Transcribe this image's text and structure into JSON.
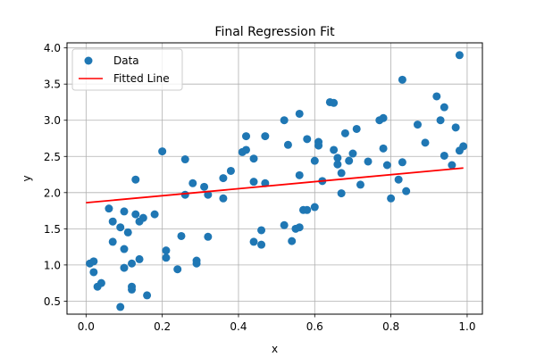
{
  "chart_data": {
    "type": "scatter",
    "title": "Final Regression Fit",
    "xlabel": "x",
    "ylabel": "y",
    "xlim": [
      -0.05,
      1.04
    ],
    "ylim": [
      0.32,
      4.07
    ],
    "grid": true,
    "legend_position": "top-left",
    "x_ticks": [
      "0.0",
      "0.2",
      "0.4",
      "0.6",
      "0.8",
      "1.0"
    ],
    "x_tick_values": [
      0.0,
      0.2,
      0.4,
      0.6,
      0.8,
      1.0
    ],
    "y_ticks": [
      "0.5",
      "1.0",
      "1.5",
      "2.0",
      "2.5",
      "3.0",
      "3.5",
      "4.0"
    ],
    "y_tick_values": [
      0.5,
      1.0,
      1.5,
      2.0,
      2.5,
      3.0,
      3.5,
      4.0
    ],
    "series": [
      {
        "name": "Data",
        "kind": "scatter",
        "color": "#1f77b4",
        "points": [
          [
            0.01,
            1.02
          ],
          [
            0.02,
            0.9
          ],
          [
            0.02,
            1.05
          ],
          [
            0.03,
            0.7
          ],
          [
            0.04,
            0.75
          ],
          [
            0.06,
            1.78
          ],
          [
            0.07,
            1.6
          ],
          [
            0.07,
            1.32
          ],
          [
            0.09,
            1.52
          ],
          [
            0.09,
            0.42
          ],
          [
            0.1,
            0.96
          ],
          [
            0.1,
            1.74
          ],
          [
            0.1,
            1.22
          ],
          [
            0.11,
            1.45
          ],
          [
            0.12,
            1.02
          ],
          [
            0.12,
            0.66
          ],
          [
            0.12,
            0.7
          ],
          [
            0.13,
            2.18
          ],
          [
            0.13,
            1.7
          ],
          [
            0.14,
            1.6
          ],
          [
            0.14,
            1.08
          ],
          [
            0.15,
            1.65
          ],
          [
            0.16,
            0.58
          ],
          [
            0.18,
            1.7
          ],
          [
            0.2,
            2.57
          ],
          [
            0.21,
            1.1
          ],
          [
            0.21,
            1.2
          ],
          [
            0.24,
            0.94
          ],
          [
            0.25,
            1.4
          ],
          [
            0.26,
            2.46
          ],
          [
            0.26,
            1.97
          ],
          [
            0.28,
            2.13
          ],
          [
            0.29,
            1.06
          ],
          [
            0.29,
            1.02
          ],
          [
            0.31,
            2.08
          ],
          [
            0.32,
            1.97
          ],
          [
            0.32,
            1.39
          ],
          [
            0.36,
            1.92
          ],
          [
            0.36,
            2.2
          ],
          [
            0.38,
            2.3
          ],
          [
            0.41,
            2.56
          ],
          [
            0.42,
            2.78
          ],
          [
            0.42,
            2.59
          ],
          [
            0.44,
            2.47
          ],
          [
            0.44,
            2.15
          ],
          [
            0.44,
            1.32
          ],
          [
            0.46,
            1.48
          ],
          [
            0.46,
            1.28
          ],
          [
            0.47,
            2.78
          ],
          [
            0.47,
            2.13
          ],
          [
            0.52,
            3.0
          ],
          [
            0.52,
            1.55
          ],
          [
            0.53,
            2.66
          ],
          [
            0.54,
            1.33
          ],
          [
            0.55,
            1.5
          ],
          [
            0.56,
            3.09
          ],
          [
            0.56,
            2.24
          ],
          [
            0.56,
            1.52
          ],
          [
            0.57,
            1.76
          ],
          [
            0.58,
            2.74
          ],
          [
            0.58,
            1.76
          ],
          [
            0.6,
            2.44
          ],
          [
            0.6,
            1.8
          ],
          [
            0.61,
            2.7
          ],
          [
            0.61,
            2.65
          ],
          [
            0.62,
            2.16
          ],
          [
            0.64,
            3.25
          ],
          [
            0.65,
            3.24
          ],
          [
            0.65,
            2.59
          ],
          [
            0.66,
            2.39
          ],
          [
            0.66,
            2.48
          ],
          [
            0.67,
            2.27
          ],
          [
            0.67,
            1.99
          ],
          [
            0.68,
            2.82
          ],
          [
            0.69,
            2.44
          ],
          [
            0.7,
            2.54
          ],
          [
            0.71,
            2.88
          ],
          [
            0.72,
            2.11
          ],
          [
            0.74,
            2.43
          ],
          [
            0.77,
            3.0
          ],
          [
            0.78,
            3.03
          ],
          [
            0.78,
            2.61
          ],
          [
            0.79,
            2.38
          ],
          [
            0.8,
            1.92
          ],
          [
            0.82,
            2.18
          ],
          [
            0.83,
            2.42
          ],
          [
            0.83,
            3.56
          ],
          [
            0.84,
            2.02
          ],
          [
            0.87,
            2.94
          ],
          [
            0.89,
            2.69
          ],
          [
            0.92,
            3.33
          ],
          [
            0.93,
            3.0
          ],
          [
            0.94,
            3.18
          ],
          [
            0.94,
            2.51
          ],
          [
            0.96,
            2.38
          ],
          [
            0.97,
            2.9
          ],
          [
            0.98,
            2.58
          ],
          [
            0.98,
            3.9
          ],
          [
            0.99,
            2.64
          ]
        ]
      },
      {
        "name": "Fitted Line",
        "kind": "line",
        "color": "#ff0000",
        "x": [
          0.0,
          0.99
        ],
        "y": [
          1.86,
          2.34
        ]
      }
    ]
  }
}
